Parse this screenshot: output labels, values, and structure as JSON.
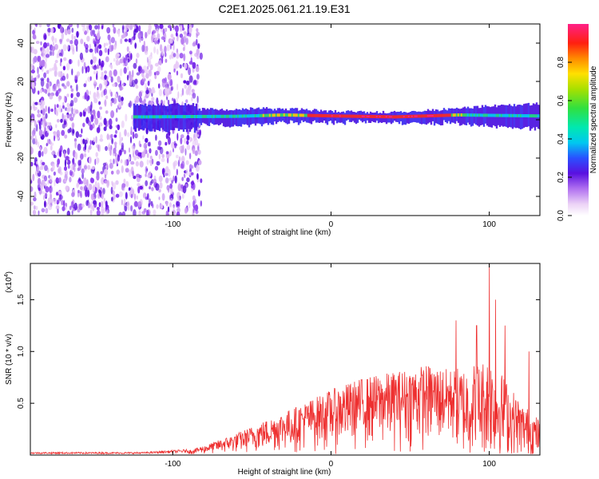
{
  "title": "C2E1.2025.061.21.19.E31",
  "chart_data": [
    {
      "type": "heatmap",
      "xlabel": "Height of straight line (km)",
      "ylabel": "Frequency (Hz)",
      "xlim": [
        -190,
        132
      ],
      "ylim": [
        -50,
        50
      ],
      "xticks": [
        -100,
        0,
        100
      ],
      "xtick_labels": [
        "-100",
        "0",
        "100"
      ],
      "yticks": [
        -40,
        -20,
        0,
        20,
        40
      ],
      "ytick_labels": [
        "-40",
        "-20",
        "0",
        "20",
        "40"
      ],
      "grid": false,
      "band_center_hz": [
        {
          "x": -120,
          "y": 1.5
        },
        {
          "x": -60,
          "y": 1.8
        },
        {
          "x": -30,
          "y": 2.5
        },
        {
          "x": 0,
          "y": 2
        },
        {
          "x": 40,
          "y": 1.5
        },
        {
          "x": 80,
          "y": 2.5
        },
        {
          "x": 130,
          "y": 2
        }
      ],
      "noise_region_x": [
        -190,
        -82
      ],
      "colorbar": {
        "label": "Normalized spectral amplitude",
        "range": [
          0,
          1
        ],
        "ticks": [
          0.0,
          0.2,
          0.4,
          0.6,
          0.8
        ],
        "tick_labels": [
          "0.0",
          "0.2",
          "0.4",
          "0.6",
          "0.8"
        ],
        "colors": [
          "#ffffff",
          "#e8c8f4",
          "#b070f0",
          "#6010e8",
          "#3040ff",
          "#00d8f0",
          "#20e060",
          "#a0e000",
          "#ffe000",
          "#ff8000",
          "#ff2010",
          "#ff2080"
        ]
      }
    },
    {
      "type": "line",
      "xlabel": "Height of straight line (km)",
      "ylabel": "SNR (10 * v/v)",
      "y_multiplier": "(x10",
      "y_multiplier_exp": "4",
      "y_multiplier_close": ")",
      "xlim": [
        -190,
        132
      ],
      "ylim": [
        0,
        1.85
      ],
      "xticks": [
        -100,
        0,
        100
      ],
      "xtick_labels": [
        "-100",
        "0",
        "100"
      ],
      "yticks": [
        0.5,
        1.0,
        1.5
      ],
      "ytick_labels": [
        "0.5",
        "1.0",
        "1.5"
      ],
      "grid": false,
      "series": [
        {
          "name": "SNR",
          "color": "#ee3030",
          "envelope": [
            {
              "x": -190,
              "y": 0.02
            },
            {
              "x": -120,
              "y": 0.02
            },
            {
              "x": -90,
              "y": 0.04
            },
            {
              "x": -80,
              "y": 0.08
            },
            {
              "x": -60,
              "y": 0.18
            },
            {
              "x": -40,
              "y": 0.3
            },
            {
              "x": -20,
              "y": 0.42
            },
            {
              "x": 0,
              "y": 0.55
            },
            {
              "x": 20,
              "y": 0.65
            },
            {
              "x": 40,
              "y": 0.7
            },
            {
              "x": 60,
              "y": 0.76
            },
            {
              "x": 75,
              "y": 0.72
            },
            {
              "x": 82,
              "y": 0.75
            },
            {
              "x": 95,
              "y": 0.8
            },
            {
              "x": 100,
              "y": 0.85
            },
            {
              "x": 110,
              "y": 0.65
            },
            {
              "x": 120,
              "y": 0.45
            },
            {
              "x": 132,
              "y": 0.3
            }
          ],
          "peaks": [
            {
              "x": 79,
              "y": 1.3
            },
            {
              "x": 92,
              "y": 1.25
            },
            {
              "x": 100,
              "y": 1.85
            },
            {
              "x": 104,
              "y": 1.5
            },
            {
              "x": 110,
              "y": 1.25
            },
            {
              "x": 125,
              "y": 1.0
            }
          ]
        }
      ]
    }
  ]
}
